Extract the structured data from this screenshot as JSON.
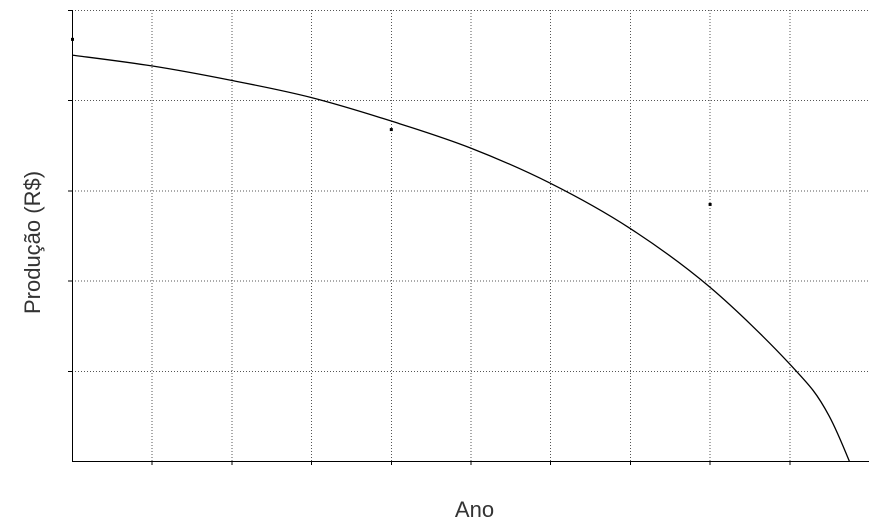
{
  "chart_data": {
    "type": "scatter",
    "title": "",
    "xlabel": "Ano",
    "ylabel": "Produção (R$)",
    "x_tick_labels": [],
    "y_tick_labels": [],
    "xlim": [
      0,
      10
    ],
    "ylim": [
      0,
      5
    ],
    "grid": true,
    "legend": "none",
    "colors": {
      "curve": "#000000",
      "points": "#000000",
      "grid": "#555555",
      "axis": "#000000",
      "label": "#333333"
    },
    "series": [
      {
        "kind": "points",
        "x": [
          0,
          4,
          8
        ],
        "y": [
          4.68,
          3.68,
          2.85
        ]
      },
      {
        "kind": "fitted-curve",
        "x": [
          0,
          1,
          2,
          3,
          4,
          5,
          6,
          7,
          8,
          9,
          9.5,
          10
        ],
        "y": [
          4.5,
          4.38,
          4.22,
          4.03,
          3.77,
          3.47,
          3.08,
          2.58,
          1.93,
          1.08,
          0.5,
          -0.55
        ]
      }
    ]
  }
}
